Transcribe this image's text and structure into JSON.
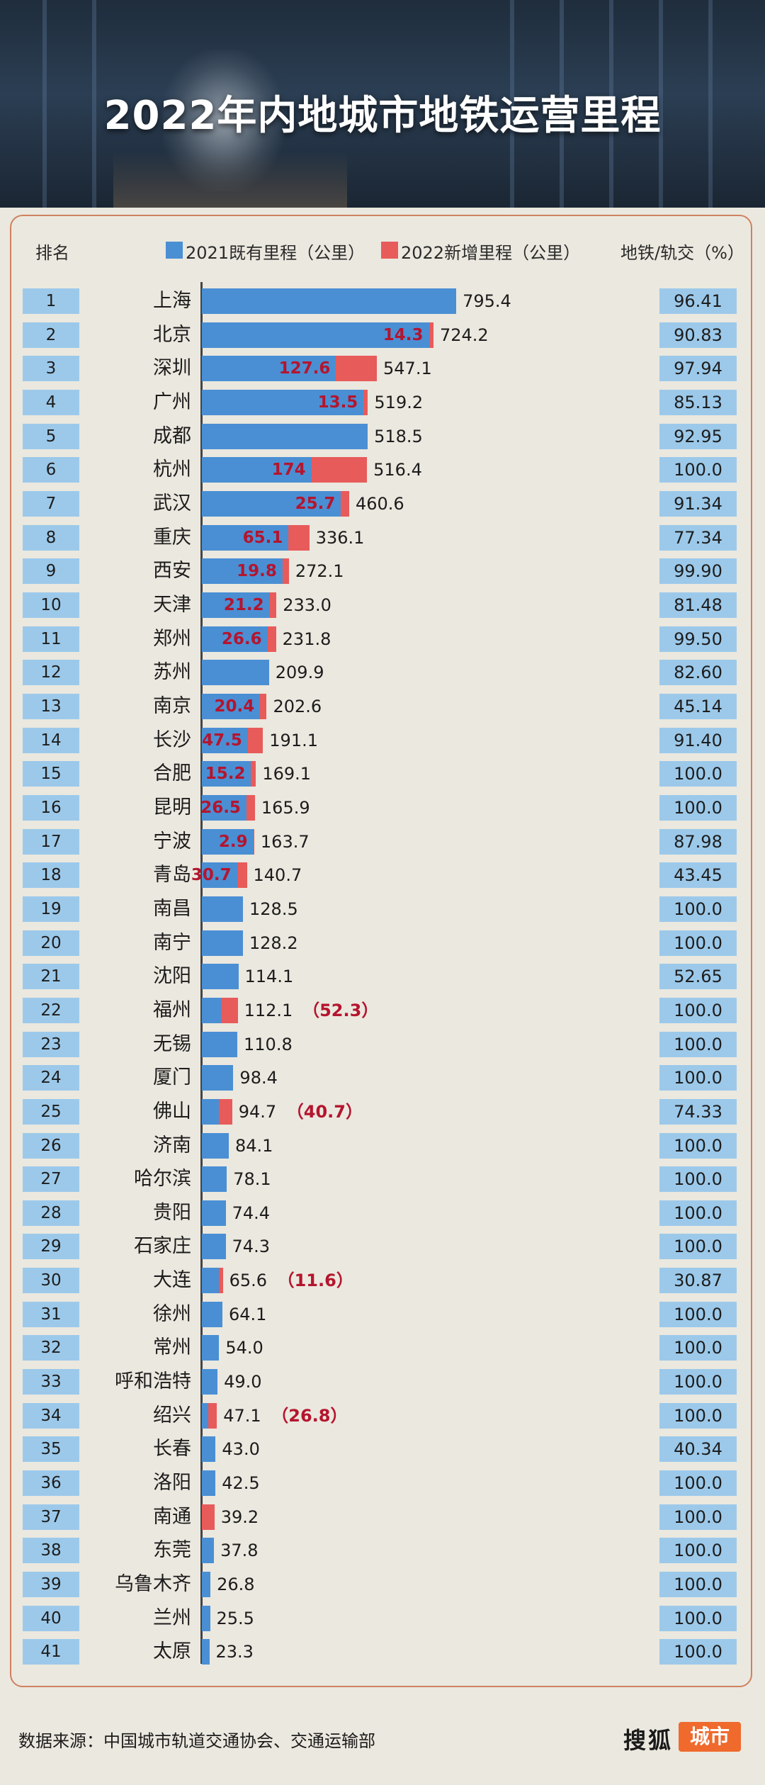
{
  "title": "2022年内地城市地铁运营里程",
  "headers": {
    "rank": "排名",
    "legend_old": "2021既有里程（公里）",
    "legend_new": "2022新增里程（公里）",
    "ratio": "地铁/轨交（%）"
  },
  "colors": {
    "existing": "#4a8fd4",
    "added": "#e85b5b",
    "label_box": "#9cc9ea",
    "added_label": "#b4152e",
    "brand": "#ef6a2c"
  },
  "source": "数据来源：中国城市轨道交通协会、交通运输部",
  "brand": {
    "name": "搜狐",
    "badge": "城市"
  },
  "chart_data": {
    "type": "bar",
    "orientation": "horizontal",
    "stacked": true,
    "title": "2022年内地城市地铁运营里程",
    "series_names": [
      "2021既有里程（公里）",
      "2022新增里程（公里）"
    ],
    "columns": [
      "rank",
      "city",
      "total_km",
      "added_km",
      "metro_share_pct",
      "added_label_style"
    ],
    "rows": [
      [
        1,
        "上海",
        795.4,
        null,
        "96.41",
        "none"
      ],
      [
        2,
        "北京",
        724.2,
        14.3,
        "90.83",
        "inside"
      ],
      [
        3,
        "深圳",
        547.1,
        127.6,
        "97.94",
        "inside"
      ],
      [
        4,
        "广州",
        519.2,
        13.5,
        "85.13",
        "inside"
      ],
      [
        5,
        "成都",
        518.5,
        null,
        "92.95",
        "none"
      ],
      [
        6,
        "杭州",
        516.4,
        174,
        "100.0",
        "inside"
      ],
      [
        7,
        "武汉",
        460.6,
        25.7,
        "91.34",
        "inside"
      ],
      [
        8,
        "重庆",
        336.1,
        65.1,
        "77.34",
        "inside"
      ],
      [
        9,
        "西安",
        272.1,
        19.8,
        "99.90",
        "inside"
      ],
      [
        10,
        "天津",
        233.0,
        21.2,
        "81.48",
        "inside"
      ],
      [
        11,
        "郑州",
        231.8,
        26.6,
        "99.50",
        "inside"
      ],
      [
        12,
        "苏州",
        209.9,
        null,
        "82.60",
        "none"
      ],
      [
        13,
        "南京",
        202.6,
        20.4,
        "45.14",
        "inside"
      ],
      [
        14,
        "长沙",
        191.1,
        47.5,
        "91.40",
        "inside"
      ],
      [
        15,
        "合肥",
        169.1,
        15.2,
        "100.0",
        "inside"
      ],
      [
        16,
        "昆明",
        165.9,
        26.5,
        "100.0",
        "inside"
      ],
      [
        17,
        "宁波",
        163.7,
        2.9,
        "87.98",
        "inside"
      ],
      [
        18,
        "青岛",
        140.7,
        30.7,
        "43.45",
        "inside"
      ],
      [
        19,
        "南昌",
        128.5,
        null,
        "100.0",
        "none"
      ],
      [
        20,
        "南宁",
        128.2,
        null,
        "100.0",
        "none"
      ],
      [
        21,
        "沈阳",
        114.1,
        null,
        "52.65",
        "none"
      ],
      [
        22,
        "福州",
        112.1,
        52.3,
        "100.0",
        "paren"
      ],
      [
        23,
        "无锡",
        110.8,
        null,
        "100.0",
        "none"
      ],
      [
        24,
        "厦门",
        98.4,
        null,
        "100.0",
        "none"
      ],
      [
        25,
        "佛山",
        94.7,
        40.7,
        "74.33",
        "paren"
      ],
      [
        26,
        "济南",
        84.1,
        null,
        "100.0",
        "none"
      ],
      [
        27,
        "哈尔滨",
        78.1,
        null,
        "100.0",
        "none"
      ],
      [
        28,
        "贵阳",
        74.4,
        null,
        "100.0",
        "none"
      ],
      [
        29,
        "石家庄",
        74.3,
        null,
        "100.0",
        "none"
      ],
      [
        30,
        "大连",
        65.6,
        11.6,
        "30.87",
        "paren"
      ],
      [
        31,
        "徐州",
        64.1,
        null,
        "100.0",
        "none"
      ],
      [
        32,
        "常州",
        54.0,
        null,
        "100.0",
        "none"
      ],
      [
        33,
        "呼和浩特",
        49.0,
        null,
        "100.0",
        "none"
      ],
      [
        34,
        "绍兴",
        47.1,
        26.8,
        "100.0",
        "paren"
      ],
      [
        35,
        "长春",
        43.0,
        null,
        "40.34",
        "none"
      ],
      [
        36,
        "洛阳",
        42.5,
        null,
        "100.0",
        "none"
      ],
      [
        37,
        "南通",
        39.2,
        39.2,
        "100.0",
        "none"
      ],
      [
        38,
        "东莞",
        37.8,
        null,
        "100.0",
        "none"
      ],
      [
        39,
        "乌鲁木齐",
        26.8,
        null,
        "100.0",
        "none"
      ],
      [
        40,
        "兰州",
        25.5,
        null,
        "100.0",
        "none"
      ],
      [
        41,
        "太原",
        23.3,
        null,
        "100.0",
        "none"
      ]
    ]
  }
}
